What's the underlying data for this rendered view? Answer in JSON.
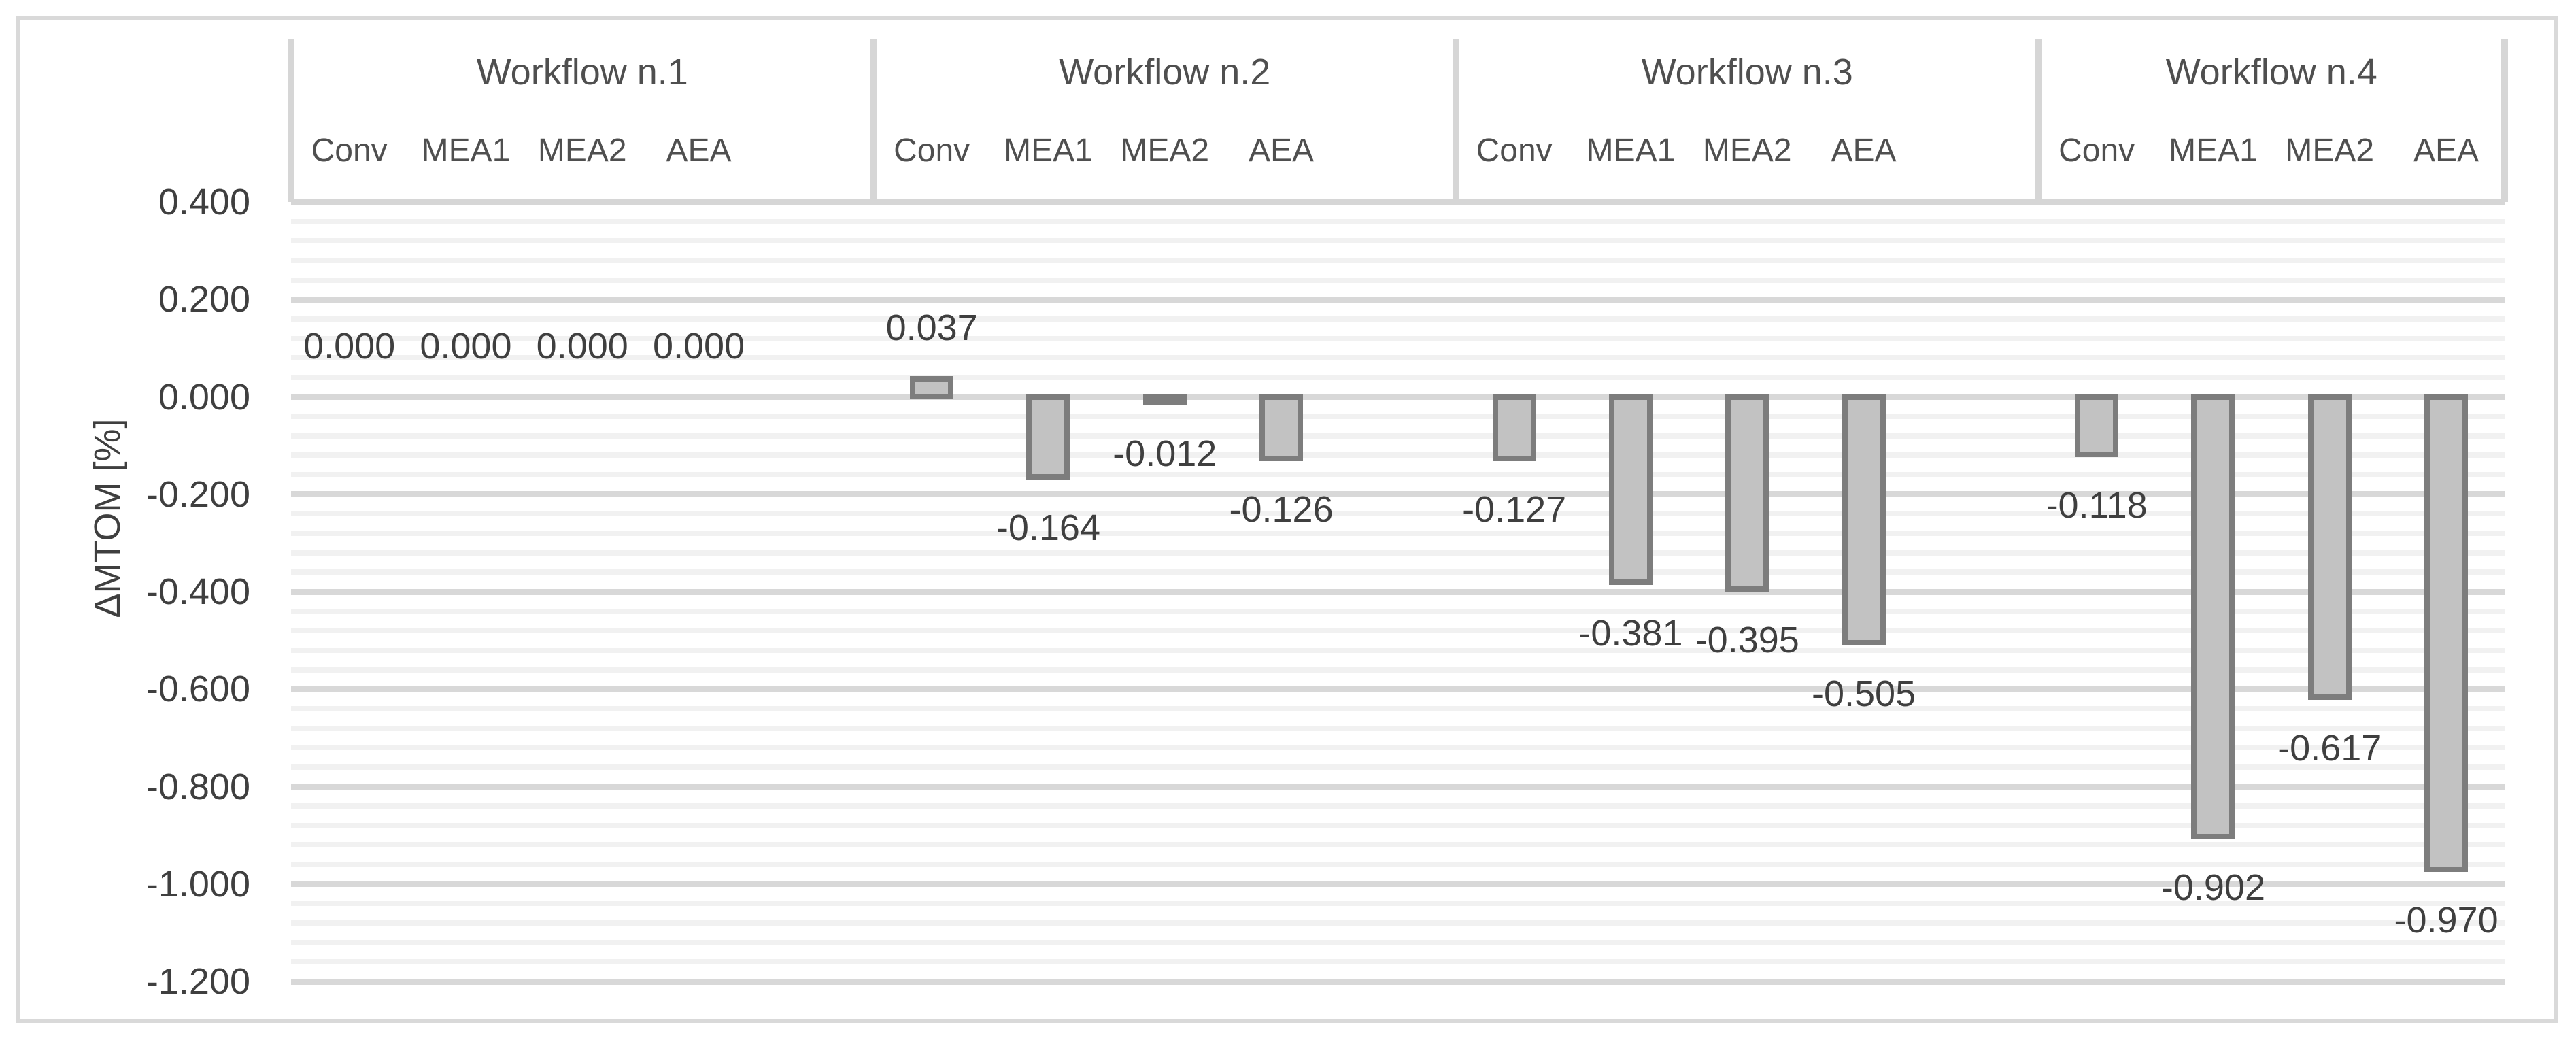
{
  "chart_data": {
    "type": "bar",
    "title": "",
    "ylabel": "ΔMTOM [%]",
    "xlabel": "",
    "ylim": [
      -1.2,
      0.4
    ],
    "y_major_unit": 0.2,
    "y_minor_unit": 0.04,
    "grid": "on",
    "legend": "none",
    "y_ticks": [
      "0.400",
      "0.200",
      "0.000",
      "-0.200",
      "-0.400",
      "-0.600",
      "-0.800",
      "-1.000",
      "-1.200"
    ],
    "groups": [
      "Workflow n.1",
      "Workflow n.2",
      "Workflow n.3",
      "Workflow n.4"
    ],
    "categories": [
      "Conv",
      "MEA1",
      "MEA2",
      "AEA"
    ],
    "series": [
      {
        "name": "Workflow n.1",
        "values": [
          0.0,
          0.0,
          0.0,
          0.0
        ],
        "labels": [
          "0.000",
          "0.000",
          "0.000",
          "0.000"
        ]
      },
      {
        "name": "Workflow n.2",
        "values": [
          0.037,
          -0.164,
          -0.012,
          -0.126
        ],
        "labels": [
          "0.037",
          "-0.164",
          "-0.012",
          "-0.126"
        ]
      },
      {
        "name": "Workflow n.3",
        "values": [
          -0.127,
          -0.381,
          -0.395,
          -0.505
        ],
        "labels": [
          "-0.127",
          "-0.381",
          "-0.395",
          "-0.505"
        ]
      },
      {
        "name": "Workflow n.4",
        "values": [
          -0.118,
          -0.902,
          -0.617,
          -0.97
        ],
        "labels": [
          "-0.118",
          "-0.902",
          "-0.617",
          "-0.970"
        ]
      }
    ],
    "colors": {
      "bar_fill": "#c2c2c2",
      "bar_border": "#7d7d7d",
      "major_gridline": "#d8d8d8",
      "minor_gridline": "#f1f1f1",
      "header_line": "#d6d6d6",
      "outer_border": "#d9d9d9",
      "text": "#3f3f3f"
    }
  }
}
